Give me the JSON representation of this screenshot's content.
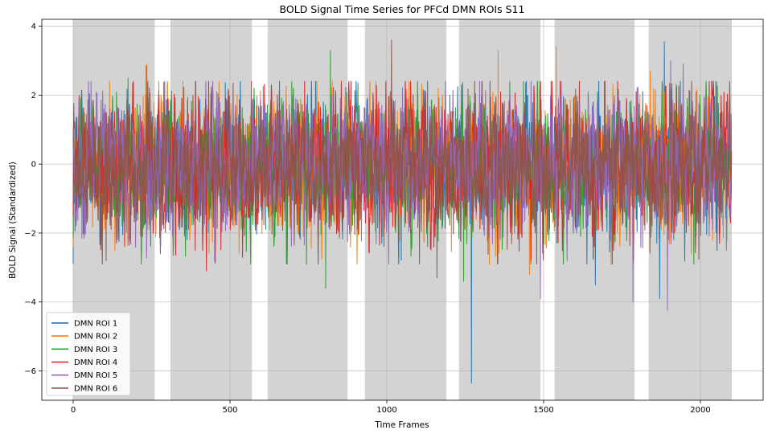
{
  "chart_data": {
    "type": "line",
    "title": "BOLD Signal Time Series for PFCd DMN ROIs S11",
    "xlabel": "Time Frames",
    "ylabel": "BOLD Signal (Standardized)",
    "xlim": [
      -100,
      2200
    ],
    "ylim": [
      -6.85,
      4.2
    ],
    "x_ticks": [
      0,
      500,
      1000,
      1500,
      2000
    ],
    "y_ticks": [
      4,
      2,
      0,
      -2,
      -4,
      -6
    ],
    "grid": true,
    "legend_position": "lower-left",
    "shaded_blocks": [
      [
        0,
        260
      ],
      [
        310,
        570
      ],
      [
        620,
        875
      ],
      [
        930,
        1190
      ],
      [
        1230,
        1490
      ],
      [
        1535,
        1790
      ],
      [
        1835,
        2100
      ]
    ],
    "shade_color": "#d3d3d3",
    "n_frames": 2100,
    "series": [
      {
        "name": "DMN ROI 1",
        "color": "#1f77b4",
        "start": -2.9,
        "extremes": [
          [
            1270,
            -6.35
          ],
          [
            1885,
            3.55
          ],
          [
            1870,
            -3.9
          ],
          [
            1665,
            -3.5
          ]
        ]
      },
      {
        "name": "DMN ROI 2",
        "color": "#ff7f0e",
        "start": -2.4,
        "extremes": [
          [
            235,
            2.9
          ],
          [
            1355,
            3.3
          ],
          [
            1540,
            3.4
          ],
          [
            1455,
            -3.2
          ],
          [
            1840,
            2.7
          ]
        ]
      },
      {
        "name": "DMN ROI 3",
        "color": "#2ca02c",
        "start": -2.1,
        "extremes": [
          [
            175,
            2.5
          ],
          [
            820,
            3.3
          ],
          [
            805,
            -3.6
          ],
          [
            1245,
            -3.4
          ]
        ]
      },
      {
        "name": "DMN ROI 4",
        "color": "#d62728",
        "start": -1.5,
        "extremes": [
          [
            425,
            -3.1
          ],
          [
            1015,
            2.1
          ],
          [
            1795,
            2.1
          ],
          [
            1460,
            -2.8
          ]
        ]
      },
      {
        "name": "DMN ROI 5",
        "color": "#9467bd",
        "start": 0.2,
        "extremes": [
          [
            1895,
            -4.25
          ],
          [
            1785,
            -4.0
          ],
          [
            1490,
            -3.9
          ],
          [
            1905,
            3.0
          ],
          [
            1945,
            2.9
          ]
        ]
      },
      {
        "name": "DMN ROI 6",
        "color": "#8c564b",
        "start": 0.5,
        "extremes": [
          [
            1015,
            3.6
          ],
          [
            233,
            2.85
          ],
          [
            510,
            2.35
          ],
          [
            105,
            -2.8
          ],
          [
            1160,
            -3.3
          ]
        ]
      }
    ]
  }
}
